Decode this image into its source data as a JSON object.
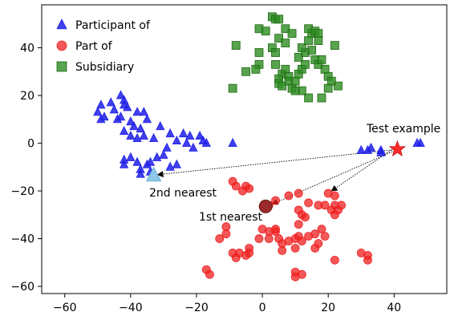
{
  "chart_data": {
    "type": "scatter",
    "xlim": [
      -67,
      56
    ],
    "ylim": [
      -63,
      58
    ],
    "xticks": [
      -60,
      -40,
      -20,
      0,
      20,
      40
    ],
    "yticks": [
      -60,
      -40,
      -20,
      0,
      20,
      40
    ],
    "grid": false,
    "legend_position": "top-left",
    "series": [
      {
        "name": "Participant of",
        "marker": "triangle",
        "color": "#1f1fe8",
        "points": [
          [
            -50,
            13
          ],
          [
            -49,
            16
          ],
          [
            -49,
            10
          ],
          [
            -48,
            11
          ],
          [
            -45,
            14
          ],
          [
            -46,
            17
          ],
          [
            -43,
            20
          ],
          [
            -42,
            18
          ],
          [
            -42,
            16
          ],
          [
            -41,
            15
          ],
          [
            -43,
            11
          ],
          [
            -44,
            10
          ],
          [
            -40,
            9
          ],
          [
            -38,
            13
          ],
          [
            -36,
            13
          ],
          [
            -35,
            10
          ],
          [
            -39,
            7
          ],
          [
            -37,
            6
          ],
          [
            -42,
            5
          ],
          [
            -40,
            3
          ],
          [
            -38,
            2
          ],
          [
            -36,
            3
          ],
          [
            -33,
            2
          ],
          [
            -31,
            7
          ],
          [
            -28,
            4
          ],
          [
            -26,
            1
          ],
          [
            -24,
            4
          ],
          [
            -23,
            0
          ],
          [
            -22,
            3
          ],
          [
            -21,
            -2
          ],
          [
            -19,
            3
          ],
          [
            -18,
            1
          ],
          [
            -17,
            0
          ],
          [
            -42,
            -7
          ],
          [
            -42,
            -9
          ],
          [
            -40,
            -6
          ],
          [
            -38,
            -8
          ],
          [
            -37,
            -11
          ],
          [
            -35,
            -9
          ],
          [
            -34,
            -8
          ],
          [
            -34,
            -12
          ],
          [
            -37,
            -13
          ],
          [
            -32,
            -6
          ],
          [
            -30,
            -5
          ],
          [
            -29,
            -2
          ],
          [
            -28,
            -10
          ],
          [
            -26,
            -9
          ],
          [
            -9,
            0
          ],
          [
            30,
            -3
          ],
          [
            32,
            -3
          ],
          [
            33,
            -2
          ],
          [
            36,
            -3
          ],
          [
            36,
            -4
          ],
          [
            47,
            0
          ],
          [
            48,
            0
          ]
        ]
      },
      {
        "name": "Part of",
        "marker": "circle",
        "color": "#ef2020",
        "points": [
          [
            -9,
            -16
          ],
          [
            -8,
            -18
          ],
          [
            -6,
            -20
          ],
          [
            -5,
            -18
          ],
          [
            -4,
            -19
          ],
          [
            2,
            -26
          ],
          [
            4,
            -24
          ],
          [
            8,
            -22
          ],
          [
            11,
            -21
          ],
          [
            14,
            -25
          ],
          [
            11,
            -28
          ],
          [
            12,
            -30
          ],
          [
            13,
            -31
          ],
          [
            11,
            -34
          ],
          [
            17,
            -26
          ],
          [
            19,
            -26
          ],
          [
            20,
            -21
          ],
          [
            22,
            -22
          ],
          [
            22,
            -26
          ],
          [
            21,
            -28
          ],
          [
            22,
            -30
          ],
          [
            23,
            -28
          ],
          [
            24,
            -26
          ],
          [
            -17,
            -53
          ],
          [
            -16,
            -55
          ],
          [
            -13,
            -40
          ],
          [
            -11,
            -38
          ],
          [
            -11,
            -35
          ],
          [
            -9,
            -46
          ],
          [
            -8,
            -48
          ],
          [
            -7,
            -46
          ],
          [
            -4,
            -46
          ],
          [
            -5,
            -47
          ],
          [
            -4,
            -44
          ],
          [
            -1,
            -40
          ],
          [
            0,
            -36
          ],
          [
            2,
            -37
          ],
          [
            2,
            -40
          ],
          [
            4,
            -37
          ],
          [
            4,
            -36
          ],
          [
            5,
            -40
          ],
          [
            6,
            -42
          ],
          [
            8,
            -41
          ],
          [
            6,
            -45
          ],
          [
            10,
            -44
          ],
          [
            10,
            -40
          ],
          [
            11,
            -39
          ],
          [
            12,
            -41
          ],
          [
            14,
            -39
          ],
          [
            16,
            -38
          ],
          [
            19,
            -39
          ],
          [
            17,
            -42
          ],
          [
            18,
            -36
          ],
          [
            16,
            -44
          ],
          [
            10,
            -54
          ],
          [
            10,
            -56
          ],
          [
            12,
            -55
          ],
          [
            22,
            -49
          ],
          [
            30,
            -46
          ],
          [
            32,
            -47
          ],
          [
            32,
            -49
          ]
        ]
      },
      {
        "name": "Subsidiary",
        "marker": "square",
        "color": "#2e8c22",
        "points": [
          [
            3,
            53
          ],
          [
            4,
            52
          ],
          [
            5,
            52
          ],
          [
            -1,
            48
          ],
          [
            1,
            47
          ],
          [
            7,
            48
          ],
          [
            9,
            46
          ],
          [
            5,
            44
          ],
          [
            7,
            42
          ],
          [
            3,
            40
          ],
          [
            -1,
            38
          ],
          [
            -8,
            41
          ],
          [
            -1,
            33
          ],
          [
            -5,
            30
          ],
          [
            -9,
            23
          ],
          [
            -2,
            31
          ],
          [
            4,
            38
          ],
          [
            4,
            33
          ],
          [
            6,
            29
          ],
          [
            5,
            27
          ],
          [
            7,
            31
          ],
          [
            8,
            28
          ],
          [
            5,
            25
          ],
          [
            6,
            24
          ],
          [
            8,
            26
          ],
          [
            9,
            23
          ],
          [
            10,
            26
          ],
          [
            11,
            29
          ],
          [
            12,
            31
          ],
          [
            13,
            33
          ],
          [
            11,
            36
          ],
          [
            13,
            38
          ],
          [
            12,
            40
          ],
          [
            14,
            43
          ],
          [
            15,
            46
          ],
          [
            14,
            48
          ],
          [
            16,
            47
          ],
          [
            17,
            46
          ],
          [
            17,
            43
          ],
          [
            15,
            39
          ],
          [
            16,
            35
          ],
          [
            17,
            33
          ],
          [
            18,
            35
          ],
          [
            19,
            31
          ],
          [
            20,
            28
          ],
          [
            21,
            26
          ],
          [
            20,
            23
          ],
          [
            18,
            19
          ],
          [
            14,
            19
          ],
          [
            12,
            22
          ],
          [
            10,
            22
          ],
          [
            23,
            24
          ],
          [
            22,
            41
          ]
        ]
      }
    ],
    "highlights": {
      "test_point": {
        "x": 41,
        "y": -2.5,
        "color": "#ff2a2a"
      },
      "nearest_1": {
        "x": 1,
        "y": -26.5,
        "color": "#9b2a2a"
      },
      "nearest_2": {
        "x": -33,
        "y": -13.5,
        "color": "#8ec8e8"
      }
    },
    "annotations": {
      "test_example": "Test example",
      "first_nearest": "1st nearest",
      "second_nearest": "2nd nearest"
    }
  }
}
